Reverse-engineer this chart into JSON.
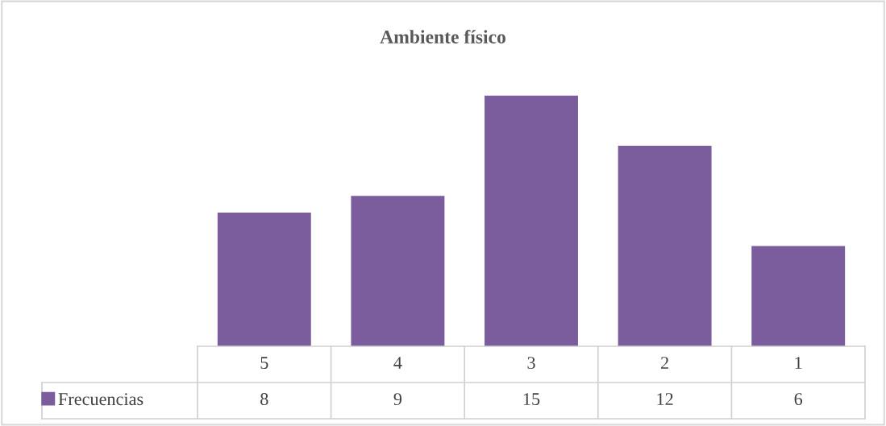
{
  "chart_data": {
    "type": "bar",
    "title": "Ambiente físico",
    "categories": [
      "5",
      "4",
      "3",
      "2",
      "1"
    ],
    "series": [
      {
        "name": "Frecuencias",
        "color": "#7b5c9c",
        "values": [
          8,
          9,
          15,
          12,
          6
        ]
      }
    ],
    "data_labels": true,
    "legend": "bottom left"
  }
}
